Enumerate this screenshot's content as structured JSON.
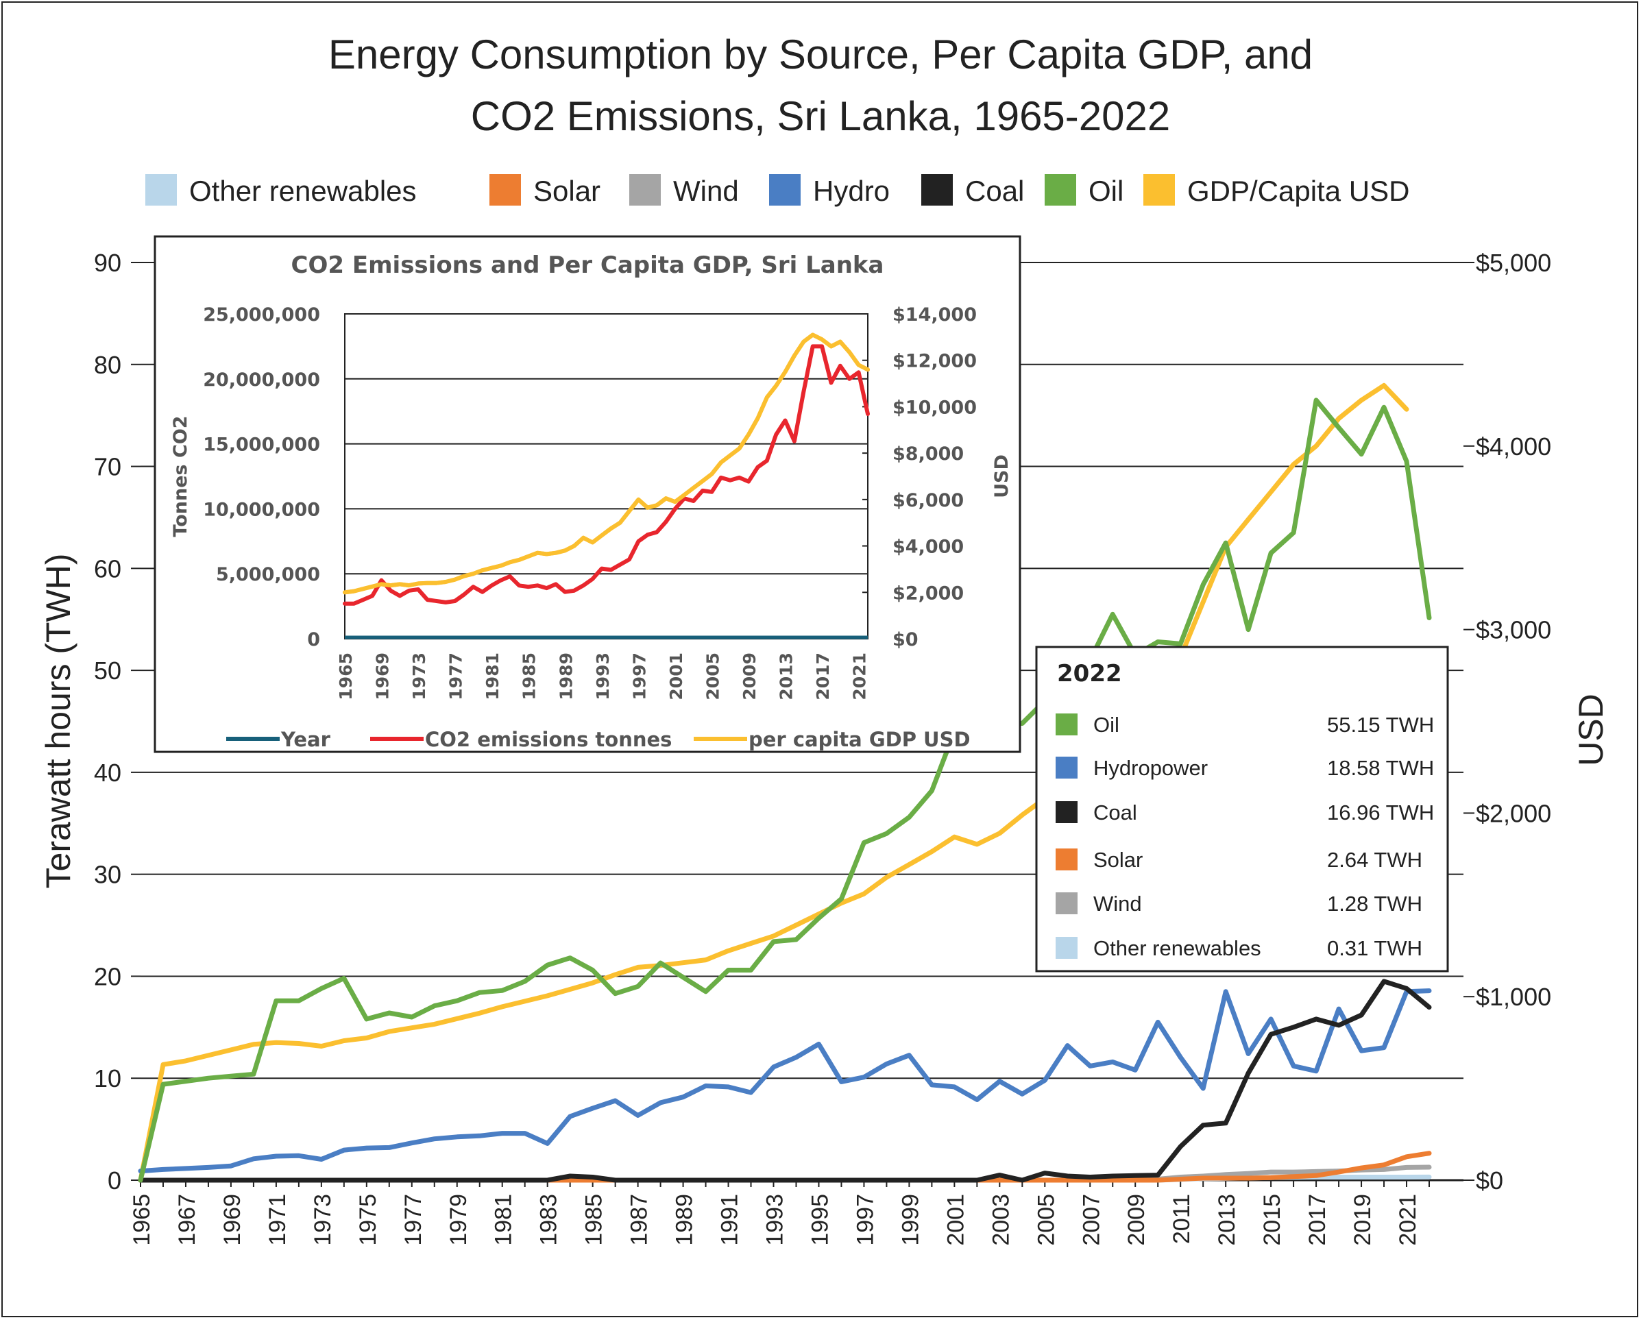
{
  "chart_data": [
    {
      "type": "line",
      "title_lines": [
        "Energy Consumption by Source, Per Capita GDP, and",
        "CO2 Emissions, Sri Lanka, 1965-2022"
      ],
      "ylabel": "Terawatt hours (TWH)",
      "y2label": "USD",
      "ylim": [
        0,
        90
      ],
      "y2lim": [
        0,
        5000
      ],
      "yticks": [
        "0",
        "10",
        "20",
        "30",
        "40",
        "50",
        "60",
        "70",
        "80",
        "90"
      ],
      "y2ticks": [
        "$0",
        "$1,000",
        "$2,000",
        "$3,000",
        "$4,000",
        "$5,000"
      ],
      "xticks": [
        "1965",
        "1967",
        "1969",
        "1971",
        "1973",
        "1975",
        "1977",
        "1979",
        "1981",
        "1983",
        "1985",
        "1987",
        "1989",
        "1991",
        "1993",
        "1995",
        "1997",
        "1999",
        "2001",
        "2003",
        "2005",
        "2007",
        "2009",
        "2011",
        "2013",
        "2015",
        "2017",
        "2019",
        "2021"
      ],
      "grid": true,
      "legend": [
        {
          "label": "Other renewables",
          "color": "#b9d6ea"
        },
        {
          "label": "Solar",
          "color": "#ed7d31"
        },
        {
          "label": "Wind",
          "color": "#a5a5a5"
        },
        {
          "label": "Hydro",
          "color": "#4a7ec4"
        },
        {
          "label": "Coal",
          "color": "#222222"
        },
        {
          "label": "Oil",
          "color": "#6aad46"
        },
        {
          "label": "GDP/Capita USD",
          "color": "#fbbf2f"
        }
      ],
      "series": [
        {
          "name": "Oil",
          "axis": "left",
          "color": "#6aad46",
          "x": [
            1965,
            1966,
            1967,
            1968,
            1969,
            1970,
            1971,
            1972,
            1973,
            1974,
            1975,
            1976,
            1977,
            1978,
            1979,
            1980,
            1981,
            1982,
            1983,
            1984,
            1985,
            1986,
            1987,
            1988,
            1989,
            1990,
            1991,
            1992,
            1993,
            1994,
            1995,
            1996,
            1997,
            1998,
            1999,
            2000,
            2001,
            2002,
            2003,
            2004,
            2005,
            2006,
            2007,
            2008,
            2009,
            2010,
            2011,
            2012,
            2013,
            2014,
            2015,
            2016,
            2017,
            2018,
            2019,
            2020,
            2021,
            2022
          ],
          "y": [
            0,
            9.4,
            9.7,
            10,
            10.2,
            10.4,
            17.6,
            17.6,
            18.8,
            19.8,
            15.8,
            16.4,
            16,
            17.1,
            17.6,
            18.4,
            18.6,
            19.5,
            21.1,
            21.8,
            20.6,
            18.3,
            19,
            21.3,
            19.9,
            18.5,
            20.6,
            20.6,
            23.4,
            23.6,
            25.7,
            27.6,
            33.1,
            34,
            35.6,
            38.2,
            44,
            49,
            44.8,
            44.8,
            47,
            46.5,
            51,
            55.5,
            51.5,
            52.8,
            52.6,
            58.4,
            62.5,
            54,
            61.5,
            63.5,
            76.5,
            73.8,
            71.2,
            75.8,
            70.5,
            55.15
          ]
        },
        {
          "name": "Hydro",
          "axis": "left",
          "color": "#4a7ec4",
          "x": [
            1965,
            1966,
            1967,
            1968,
            1969,
            1970,
            1971,
            1972,
            1973,
            1974,
            1975,
            1976,
            1977,
            1978,
            1979,
            1980,
            1981,
            1982,
            1983,
            1984,
            1985,
            1986,
            1987,
            1988,
            1989,
            1990,
            1991,
            1992,
            1993,
            1994,
            1995,
            1996,
            1997,
            1998,
            1999,
            2000,
            2001,
            2002,
            2003,
            2004,
            2005,
            2006,
            2007,
            2008,
            2009,
            2010,
            2011,
            2012,
            2013,
            2014,
            2015,
            2016,
            2017,
            2018,
            2019,
            2020,
            2021,
            2022
          ],
          "y": [
            0.9,
            1.05,
            1.15,
            1.25,
            1.4,
            2.1,
            2.35,
            2.4,
            2.05,
            2.95,
            3.15,
            3.2,
            3.65,
            4.05,
            4.25,
            4.35,
            4.6,
            4.6,
            3.6,
            6.25,
            7.05,
            7.8,
            6.35,
            7.6,
            8.15,
            9.25,
            9.15,
            8.6,
            11.1,
            12.05,
            13.35,
            9.65,
            10.1,
            11.4,
            12.25,
            9.35,
            9.15,
            7.9,
            9.7,
            8.45,
            9.8,
            13.2,
            11.2,
            11.6,
            10.8,
            15.5,
            12.05,
            9,
            18.5,
            12.4,
            15.8,
            11.2,
            10.7,
            16.8,
            12.7,
            13,
            18.5,
            18.58
          ]
        },
        {
          "name": "Coal",
          "axis": "left",
          "color": "#222222",
          "x": [
            1965,
            1983,
            1984,
            1985,
            1986,
            2002,
            2003,
            2004,
            2005,
            2006,
            2007,
            2008,
            2009,
            2010,
            2011,
            2012,
            2013,
            2014,
            2015,
            2016,
            2017,
            2018,
            2019,
            2020,
            2021,
            2022
          ],
          "y": [
            0,
            0,
            0.4,
            0.3,
            0,
            0,
            0.5,
            0,
            0.7,
            0.4,
            0.3,
            0.4,
            0.45,
            0.5,
            3.3,
            5.4,
            5.6,
            10.5,
            14.3,
            15,
            15.8,
            15.2,
            16.2,
            19.5,
            18.8,
            16.96
          ]
        },
        {
          "name": "Solar",
          "axis": "left",
          "color": "#ed7d31",
          "x": [
            1965,
            2010,
            2011,
            2012,
            2013,
            2014,
            2015,
            2016,
            2017,
            2018,
            2019,
            2020,
            2021,
            2022
          ],
          "y": [
            0,
            0,
            0.1,
            0.2,
            0.2,
            0.2,
            0.25,
            0.35,
            0.45,
            0.8,
            1.2,
            1.5,
            2.3,
            2.64
          ]
        },
        {
          "name": "Wind",
          "axis": "left",
          "color": "#a5a5a5",
          "x": [
            1965,
            2009,
            2010,
            2011,
            2012,
            2013,
            2014,
            2015,
            2016,
            2017,
            2018,
            2019,
            2020,
            2021,
            2022
          ],
          "y": [
            0,
            0,
            0.1,
            0.3,
            0.4,
            0.55,
            0.65,
            0.8,
            0.8,
            0.85,
            0.9,
            1.0,
            1.05,
            1.25,
            1.28
          ]
        },
        {
          "name": "Other renewables",
          "axis": "left",
          "color": "#b9d6ea",
          "x": [
            1965,
            2010,
            2012,
            2015,
            2017,
            2018,
            2019,
            2020,
            2021,
            2022
          ],
          "y": [
            0,
            0,
            0.15,
            0.25,
            0.3,
            0.3,
            0.3,
            0.3,
            0.3,
            0.31
          ]
        },
        {
          "name": "GDP/Capita USD",
          "axis": "right",
          "color": "#fbbf2f",
          "x": [
            1965,
            1966,
            1967,
            1968,
            1969,
            1970,
            1971,
            1972,
            1973,
            1974,
            1975,
            1976,
            1977,
            1978,
            1979,
            1980,
            1981,
            1982,
            1983,
            1984,
            1985,
            1986,
            1987,
            1988,
            1989,
            1990,
            1991,
            1992,
            1993,
            1994,
            1995,
            1996,
            1997,
            1998,
            1999,
            2000,
            2001,
            2002,
            2003,
            2004,
            2005,
            2006,
            2007,
            2008,
            2009,
            2010,
            2011,
            2012,
            2013,
            2014,
            2015,
            2016,
            2017,
            2018,
            2019,
            2020,
            2021
          ],
          "y": [
            0,
            630,
            650,
            680,
            710,
            740,
            750,
            745,
            730,
            760,
            775,
            810,
            830,
            850,
            880,
            910,
            945,
            975,
            1005,
            1040,
            1075,
            1120,
            1160,
            1170,
            1185,
            1200,
            1250,
            1290,
            1330,
            1390,
            1450,
            1510,
            1560,
            1650,
            1720,
            1790,
            1870,
            1830,
            1890,
            1990,
            2080,
            2170,
            2250,
            2340,
            2500,
            2650,
            2850,
            3150,
            3450,
            3600,
            3750,
            3900,
            4000,
            4150,
            4250,
            4330,
            4200
          ]
        }
      ]
    },
    {
      "type": "line",
      "title": "CO2 Emissions and Per Capita GDP, Sri Lanka",
      "ylabel": "Tonnes CO2",
      "y2label": "USD",
      "ylim": [
        0,
        25000000
      ],
      "y2lim": [
        0,
        14000
      ],
      "yticks": [
        "0",
        "5,000,000",
        "10,000,000",
        "15,000,000",
        "20,000,000",
        "25,000,000"
      ],
      "y2ticks": [
        "$0",
        "$2,000",
        "$4,000",
        "$6,000",
        "$8,000",
        "$10,000",
        "$12,000",
        "$14,000"
      ],
      "xticks": [
        "1965",
        "1969",
        "1973",
        "1977",
        "1981",
        "1985",
        "1989",
        "1993",
        "1997",
        "2001",
        "2005",
        "2009",
        "2013",
        "2017",
        "2021"
      ],
      "legend": [
        {
          "label": "Year",
          "color": "#17607a"
        },
        {
          "label": "CO2 emissions tonnes",
          "color": "#e8262d"
        },
        {
          "label": "per capita GDP USD",
          "color": "#fbbf2f"
        }
      ],
      "series": [
        {
          "name": "Year",
          "axis": "left",
          "color": "#17607a",
          "x": [
            1965,
            2022
          ],
          "y": [
            1965,
            2022
          ]
        },
        {
          "name": "CO2 emissions tonnes",
          "axis": "left",
          "color": "#e8262d",
          "x": [
            1965,
            1966,
            1967,
            1968,
            1969,
            1970,
            1971,
            1972,
            1973,
            1974,
            1975,
            1976,
            1977,
            1978,
            1979,
            1980,
            1981,
            1982,
            1983,
            1984,
            1985,
            1986,
            1987,
            1988,
            1989,
            1990,
            1991,
            1992,
            1993,
            1994,
            1995,
            1996,
            1997,
            1998,
            1999,
            2000,
            2001,
            2002,
            2003,
            2004,
            2005,
            2006,
            2007,
            2008,
            2009,
            2010,
            2011,
            2012,
            2013,
            2014,
            2015,
            2016,
            2017,
            2018,
            2019,
            2020,
            2021,
            2022
          ],
          "y": [
            2700000,
            2700000,
            3000000,
            3300000,
            4500000,
            3700000,
            3300000,
            3700000,
            3800000,
            3000000,
            2900000,
            2800000,
            2900000,
            3400000,
            4000000,
            3600000,
            4100000,
            4500000,
            4800000,
            4100000,
            4000000,
            4100000,
            3900000,
            4200000,
            3600000,
            3700000,
            4100000,
            4600000,
            5400000,
            5300000,
            5700000,
            6100000,
            7500000,
            8000000,
            8200000,
            9000000,
            10000000,
            10800000,
            10600000,
            11400000,
            11300000,
            12400000,
            12200000,
            12400000,
            12100000,
            13200000,
            13700000,
            15700000,
            16800000,
            15200000,
            19000000,
            22500000,
            22500000,
            19700000,
            21000000,
            20000000,
            20500000,
            17300000
          ]
        },
        {
          "name": "per capita GDP USD",
          "axis": "right",
          "color": "#fbbf2f",
          "x": [
            1965,
            1966,
            1967,
            1968,
            1969,
            1970,
            1971,
            1972,
            1973,
            1974,
            1975,
            1976,
            1977,
            1978,
            1979,
            1980,
            1981,
            1982,
            1983,
            1984,
            1985,
            1986,
            1987,
            1988,
            1989,
            1990,
            1991,
            1992,
            1993,
            1994,
            1995,
            1996,
            1997,
            1998,
            1999,
            2000,
            2001,
            2002,
            2003,
            2004,
            2005,
            2006,
            2007,
            2008,
            2009,
            2010,
            2011,
            2012,
            2013,
            2014,
            2015,
            2016,
            2017,
            2018,
            2019,
            2020,
            2021,
            2022
          ],
          "y": [
            2000,
            2050,
            2150,
            2250,
            2350,
            2300,
            2350,
            2300,
            2380,
            2400,
            2400,
            2450,
            2550,
            2700,
            2800,
            2950,
            3050,
            3150,
            3300,
            3400,
            3550,
            3700,
            3650,
            3700,
            3800,
            4000,
            4350,
            4150,
            4450,
            4750,
            5000,
            5500,
            6000,
            5650,
            5750,
            6050,
            5900,
            6200,
            6500,
            6800,
            7100,
            7600,
            7900,
            8200,
            8800,
            9500,
            10400,
            10900,
            11500,
            12200,
            12800,
            13100,
            12900,
            12600,
            12800,
            12350,
            11800,
            11600
          ]
        }
      ]
    }
  ],
  "table_box": {
    "title": "2022",
    "rows": [
      {
        "label": "Oil",
        "value": "55.15 TWH",
        "color": "#6aad46"
      },
      {
        "label": "Hydropower",
        "value": "18.58 TWH",
        "color": "#4a7ec4"
      },
      {
        "label": "Coal",
        "value": "16.96 TWH",
        "color": "#222222"
      },
      {
        "label": "Solar",
        "value": "2.64 TWH",
        "color": "#ed7d31"
      },
      {
        "label": "Wind",
        "value": "1.28 TWH",
        "color": "#a5a5a5"
      },
      {
        "label": "Other renewables",
        "value": "0.31 TWH",
        "color": "#b9d6ea"
      }
    ]
  }
}
